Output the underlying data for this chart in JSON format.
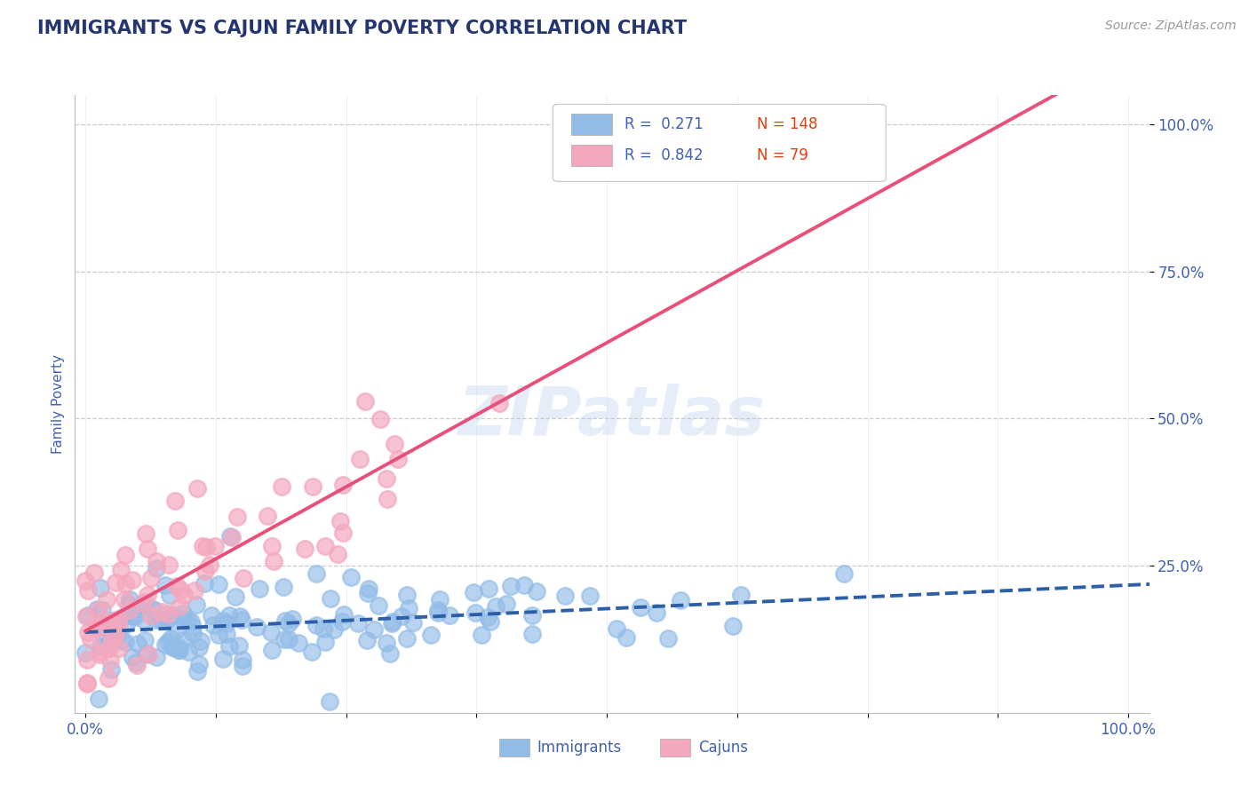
{
  "title": "IMMIGRANTS VS CAJUN FAMILY POVERTY CORRELATION CHART",
  "source": "Source: ZipAtlas.com",
  "ylabel": "Family Poverty",
  "xlim": [
    0.0,
    1.0
  ],
  "ylim": [
    0.0,
    1.05
  ],
  "immigrants_R": 0.271,
  "immigrants_N": 148,
  "cajuns_R": 0.842,
  "cajuns_N": 79,
  "immigrants_color": "#92bce8",
  "cajuns_color": "#f4a8be",
  "immigrants_line_color": "#2d5fa8",
  "cajuns_line_color": "#e8507a",
  "title_color": "#253570",
  "tick_label_color": "#4060b0",
  "watermark": "ZIPatlas",
  "background_color": "#ffffff",
  "grid_color": "#cccccc",
  "legend_label_immigrants": "Immigrants",
  "legend_label_cajuns": "Cajuns",
  "title_fontsize": 15,
  "source_fontsize": 10,
  "axis_label_fontsize": 11,
  "y_tick_positions": [
    0.25,
    0.5,
    0.75,
    1.0
  ],
  "y_tick_labels": [
    "25.0%",
    "50.0%",
    "75.0%",
    "100.0%"
  ]
}
